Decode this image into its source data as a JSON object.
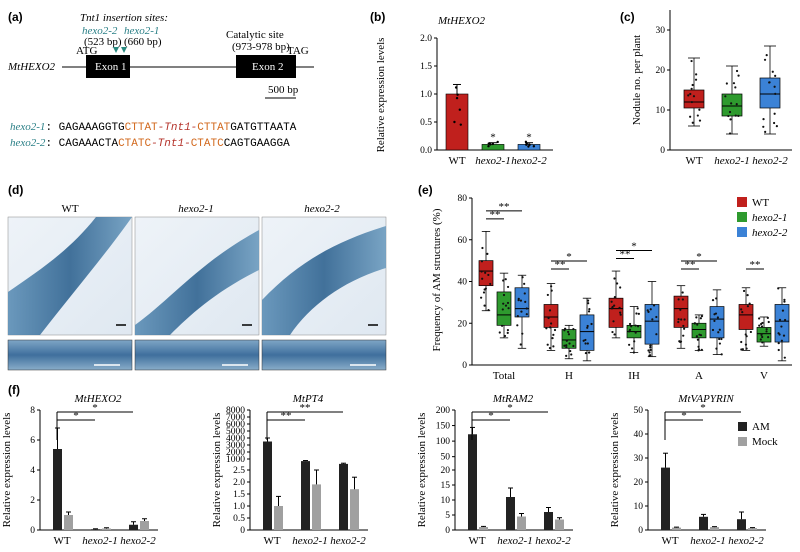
{
  "panels": {
    "a": {
      "label": "(a)",
      "insertion_title": "Tnt1 insertion sites:",
      "allele2": "hexo2-2",
      "allele1": "hexo2-1",
      "allele2_bp": "(523 bp)",
      "allele1_bp": "(660 bp)",
      "catalytic_title": "Catalytic site",
      "catalytic_bp": "(973-978 bp)",
      "gene": "MtHEXO2",
      "atg": "ATG",
      "tag": "TAG",
      "exon1": "Exon 1",
      "exon2": "Exon 2",
      "scale": "500 bp",
      "seq1_label": "hexo2-1",
      "seq1_a": ": GAGAAAGGTG",
      "seq1_b": "CTTAT",
      "seq1_c": "-Tnt1-",
      "seq1_d": "CTTAT",
      "seq1_e": "GATGTTAATA",
      "seq2_label": "hexo2-2",
      "seq2_a": ": CAGAAACTA",
      "seq2_b": "CTATC",
      "seq2_c": "-Tnt1-",
      "seq2_d": "CTATC",
      "seq2_e": "CAGTGAAGGA"
    },
    "b": {
      "label": "(b)",
      "title": "MtHEXO2",
      "ylabel": "Relative expression levels",
      "yticks": [
        "0.0",
        "0.5",
        "1.0",
        "1.5",
        "2.0"
      ],
      "categories": [
        "WT",
        "hexo2-1",
        "hexo2-2"
      ]
    },
    "c": {
      "label": "(c)",
      "ylabel": "Nodule no. per plant",
      "yticks": [
        "0",
        "10",
        "20",
        "30"
      ],
      "categories": [
        "WT",
        "hexo2-1",
        "hexo2-2"
      ]
    },
    "d": {
      "label": "(d)",
      "titles": [
        "WT",
        "hexo2-1",
        "hexo2-2"
      ]
    },
    "e": {
      "label": "(e)",
      "ylabel": "Frequency of AM structures (%)",
      "yticks": [
        "0",
        "20",
        "40",
        "60",
        "80"
      ],
      "groups": [
        "Total",
        "H",
        "IH",
        "A",
        "V"
      ],
      "legend": [
        "WT",
        "hexo2-1",
        "hexo2-2"
      ]
    },
    "f": {
      "label": "(f)",
      "ylabel": "Relative expression levels",
      "legend": [
        "AM",
        "Mock"
      ],
      "titles": [
        "MtHEXO2",
        "MtPT4",
        "MtRAM2",
        "MtVAPYRIN"
      ],
      "categories": [
        "WT",
        "hexo2-1",
        "hexo2-2"
      ],
      "ticks1": [
        "0",
        "2",
        "4",
        "6",
        "8"
      ],
      "ticks2_low": [
        "0",
        "0.5",
        "1.0",
        "1.5",
        "2.0",
        "2.5"
      ],
      "ticks2_high": [
        "1000",
        "2000",
        "3000",
        "4000",
        "5000",
        "6000",
        "7000",
        "8000"
      ],
      "ticks3_low": [
        "0",
        "5",
        "10",
        "15",
        "20"
      ],
      "ticks3_high": [
        "50",
        "100",
        "150",
        "200"
      ],
      "ticks4": [
        "0",
        "10",
        "20",
        "30",
        "40",
        "50"
      ]
    }
  },
  "chart_data": [
    {
      "type": "bar",
      "panel": "b",
      "title": "MtHEXO2",
      "categories": [
        "WT",
        "hexo2-1",
        "hexo2-2"
      ],
      "values": [
        1.0,
        0.1,
        0.1
      ],
      "errors": [
        0.17,
        0.03,
        0.03
      ],
      "colors": [
        "#c0201d",
        "#2e9a2e",
        "#3b82d6"
      ],
      "ylabel": "Relative expression levels",
      "ylim": [
        0,
        2.0
      ],
      "significance": [
        "",
        "*",
        "*"
      ]
    },
    {
      "type": "box",
      "panel": "c",
      "categories": [
        "WT",
        "hexo2-1",
        "hexo2-2"
      ],
      "stats": [
        {
          "min": 6,
          "q1": 10.5,
          "median": 12,
          "q3": 15,
          "max": 23
        },
        {
          "min": 4,
          "q1": 8.5,
          "median": 11,
          "q3": 14,
          "max": 21
        },
        {
          "min": 4,
          "q1": 10.5,
          "median": 14,
          "q3": 18,
          "max": 26
        }
      ],
      "colors": [
        "#c0201d",
        "#2e9a2e",
        "#3b82d6"
      ],
      "ylabel": "Nodule no. per plant",
      "ylim": [
        0,
        35
      ]
    },
    {
      "type": "box",
      "panel": "e",
      "groups": [
        "Total",
        "H",
        "IH",
        "A",
        "V"
      ],
      "series": [
        {
          "name": "WT",
          "stats": [
            {
              "min": 26,
              "q1": 38,
              "median": 45,
              "q3": 50,
              "max": 64
            },
            {
              "min": 7,
              "q1": 18,
              "median": 23,
              "q3": 29,
              "max": 39
            },
            {
              "min": 13,
              "q1": 18,
              "median": 27,
              "q3": 32,
              "max": 45
            },
            {
              "min": 8,
              "q1": 18,
              "median": 27,
              "q3": 33,
              "max": 38
            },
            {
              "min": 7,
              "q1": 17,
              "median": 24,
              "q3": 29,
              "max": 37
            }
          ]
        },
        {
          "name": "hexo2-1",
          "stats": [
            {
              "min": 13,
              "q1": 19,
              "median": 24,
              "q3": 35,
              "max": 44
            },
            {
              "min": 3,
              "q1": 8,
              "median": 12,
              "q3": 17,
              "max": 19
            },
            {
              "min": 6,
              "q1": 13,
              "median": 16,
              "q3": 19,
              "max": 28
            },
            {
              "min": 7,
              "q1": 13,
              "median": 17,
              "q3": 20,
              "max": 24
            },
            {
              "min": 9,
              "q1": 11,
              "median": 15,
              "q3": 18,
              "max": 23
            }
          ]
        },
        {
          "name": "hexo2-2",
          "stats": [
            {
              "min": 8,
              "q1": 23,
              "median": 27,
              "q3": 37,
              "max": 43
            },
            {
              "min": 2,
              "q1": 7,
              "median": 16,
              "q3": 24,
              "max": 32
            },
            {
              "min": 4,
              "q1": 10,
              "median": 21,
              "q3": 29,
              "max": 40
            },
            {
              "min": 5,
              "q1": 13,
              "median": 22,
              "q3": 28,
              "max": 36
            },
            {
              "min": 2,
              "q1": 11,
              "median": 21,
              "q3": 29,
              "max": 37
            }
          ]
        }
      ],
      "colors": [
        "#c0201d",
        "#2e9a2e",
        "#3b82d6"
      ],
      "ylabel": "Frequency of AM structures (%)",
      "ylim": [
        0,
        80
      ]
    },
    {
      "type": "bar",
      "panel": "f1",
      "title": "MtHEXO2",
      "categories": [
        "WT",
        "hexo2-1",
        "hexo2-2"
      ],
      "series": [
        {
          "name": "AM",
          "values": [
            5.4,
            0.05,
            0.35
          ],
          "errors": [
            1.4,
            0.03,
            0.2
          ]
        },
        {
          "name": "Mock",
          "values": [
            1.0,
            0.1,
            0.6
          ],
          "errors": [
            0.2,
            0.05,
            0.15
          ]
        }
      ],
      "ylim": [
        0,
        8
      ]
    },
    {
      "type": "bar",
      "panel": "f2",
      "title": "MtPT4",
      "categories": [
        "WT",
        "hexo2-1",
        "hexo2-2"
      ],
      "series": [
        {
          "name": "AM",
          "values": [
            3500,
            700,
            300
          ],
          "errors": [
            500,
            80,
            100
          ]
        },
        {
          "name": "Mock",
          "values": [
            1.0,
            1.9,
            1.7
          ],
          "errors": [
            0.4,
            0.6,
            0.5
          ]
        }
      ],
      "ylim": [
        0,
        8000
      ]
    },
    {
      "type": "bar",
      "panel": "f3",
      "title": "MtRAM2",
      "categories": [
        "WT",
        "hexo2-1",
        "hexo2-2"
      ],
      "series": [
        {
          "name": "AM",
          "values": [
            122,
            11,
            6
          ],
          "errors": [
            22,
            3,
            1.5
          ]
        },
        {
          "name": "Mock",
          "values": [
            1.0,
            4.5,
            3.5
          ],
          "errors": [
            0.2,
            1.0,
            0.6
          ]
        }
      ],
      "ylim": [
        0,
        200
      ]
    },
    {
      "type": "bar",
      "panel": "f4",
      "title": "MtVAPYRIN",
      "categories": [
        "WT",
        "hexo2-1",
        "hexo2-2"
      ],
      "series": [
        {
          "name": "AM",
          "values": [
            26,
            5.5,
            4.5
          ],
          "errors": [
            6,
            1,
            3
          ]
        },
        {
          "name": "Mock",
          "values": [
            1.0,
            1.2,
            0.8
          ],
          "errors": [
            0.2,
            0.2,
            0.2
          ]
        }
      ],
      "ylim": [
        0,
        50
      ]
    }
  ]
}
